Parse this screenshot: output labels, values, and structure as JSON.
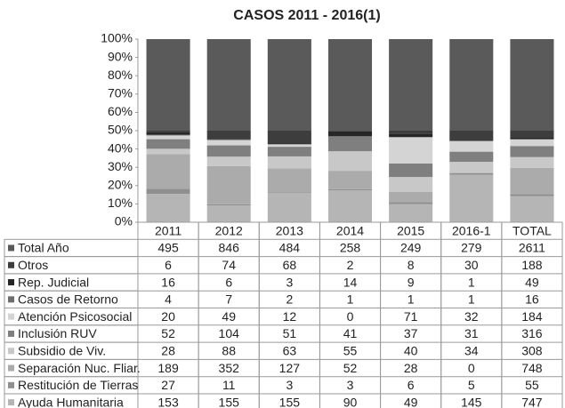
{
  "chart_data": {
    "type": "stacked_bar_100",
    "title": "CASOS 2011 - 2016(1)",
    "categories": [
      "2011",
      "2012",
      "2013",
      "2014",
      "2015",
      "2016-1",
      "TOTAL"
    ],
    "ylim": [
      0,
      100
    ],
    "yticks": [
      {
        "value": 0,
        "label": "0%"
      },
      {
        "value": 10,
        "label": "10%"
      },
      {
        "value": 20,
        "label": "20%"
      },
      {
        "value": 30,
        "label": "30%"
      },
      {
        "value": 40,
        "label": "40%"
      },
      {
        "value": 50,
        "label": "50%"
      },
      {
        "value": 60,
        "label": "60%"
      },
      {
        "value": 70,
        "label": "70%"
      },
      {
        "value": 80,
        "label": "80%"
      },
      {
        "value": 90,
        "label": "90%"
      },
      {
        "value": 100,
        "label": "100%"
      }
    ],
    "series": [
      {
        "name": "Total Año",
        "color": "#5a5a5a",
        "values": [
          495,
          846,
          484,
          258,
          249,
          279,
          2611
        ]
      },
      {
        "name": "Otros",
        "color": "#3d3d3d",
        "values": [
          6,
          74,
          68,
          2,
          8,
          30,
          188
        ]
      },
      {
        "name": "Rep. Judicial",
        "color": "#262626",
        "values": [
          16,
          6,
          3,
          14,
          9,
          1,
          49
        ]
      },
      {
        "name": "Casos de Retorno",
        "color": "#6e6e6e",
        "values": [
          4,
          7,
          2,
          1,
          1,
          1,
          16
        ]
      },
      {
        "name": "Atención Psicosocial",
        "color": "#d4d4d4",
        "values": [
          20,
          49,
          12,
          0,
          71,
          32,
          184
        ]
      },
      {
        "name": "Inclusión RUV",
        "color": "#7f7f7f",
        "values": [
          52,
          104,
          51,
          41,
          37,
          31,
          316
        ]
      },
      {
        "name": "Subsidio de Viv.",
        "color": "#c8c8c8",
        "values": [
          28,
          88,
          63,
          55,
          40,
          34,
          308
        ]
      },
      {
        "name": "Separación Nuc. Fliar.",
        "color": "#ababab",
        "values": [
          189,
          352,
          127,
          52,
          28,
          0,
          748
        ]
      },
      {
        "name": "Restitución de Tierras",
        "color": "#8f8f8f",
        "values": [
          27,
          11,
          3,
          3,
          6,
          5,
          55
        ]
      },
      {
        "name": "Ayuda Humanitaria",
        "color": "#b5b5b5",
        "values": [
          153,
          155,
          155,
          90,
          49,
          145,
          747
        ]
      }
    ]
  }
}
